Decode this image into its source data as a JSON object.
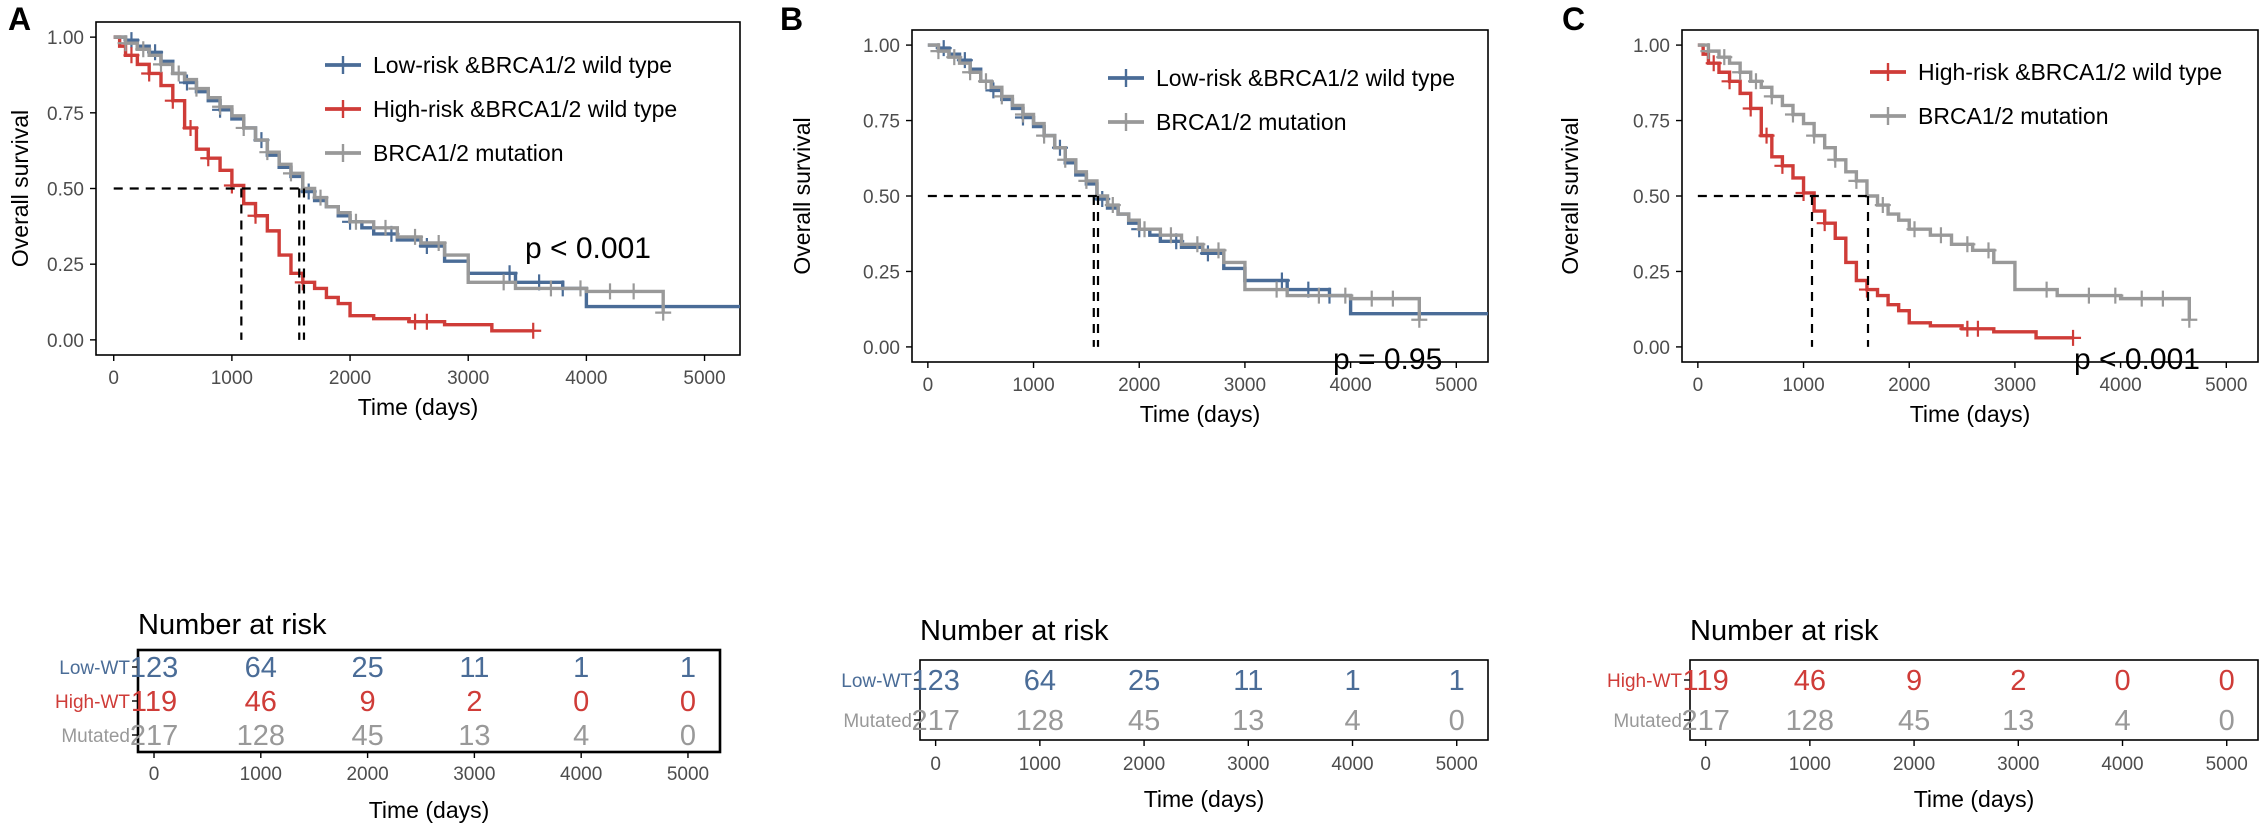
{
  "figure": {
    "colors": {
      "blue": "#4a6c97",
      "red": "#cf3c38",
      "gray": "#999999",
      "axis": "#000000",
      "tick": "#4d4d4d",
      "dash": "#000000"
    }
  },
  "chart_data": [
    {
      "type": "line",
      "panel_label": "A",
      "title": "",
      "xlabel": "Time (days)",
      "ylabel": "Overall survival",
      "xlim": [
        -150,
        5300
      ],
      "ylim": [
        -0.05,
        1.05
      ],
      "x_ticks": [
        "0",
        "1000",
        "2000",
        "3000",
        "4000",
        "5000"
      ],
      "y_ticks": [
        "0.00",
        "0.25",
        "0.50",
        "0.75",
        "1.00"
      ],
      "p_value": "p < 0.001",
      "legend_position": "top-right",
      "series": [
        {
          "name": "Low-risk &BRCA1/2 wild type",
          "color": "#4a6c97",
          "x": [
            0,
            100,
            200,
            300,
            400,
            500,
            600,
            700,
            800,
            900,
            1000,
            1100,
            1200,
            1300,
            1400,
            1500,
            1600,
            1700,
            1800,
            1900,
            2000,
            2100,
            2200,
            2400,
            2600,
            2800,
            3000,
            3400,
            3800,
            4000,
            5300
          ],
          "y": [
            1.0,
            0.99,
            0.97,
            0.95,
            0.92,
            0.88,
            0.85,
            0.82,
            0.79,
            0.76,
            0.73,
            0.7,
            0.66,
            0.61,
            0.57,
            0.54,
            0.49,
            0.46,
            0.44,
            0.41,
            0.39,
            0.37,
            0.35,
            0.33,
            0.31,
            0.26,
            0.22,
            0.19,
            0.17,
            0.11,
            0.11
          ],
          "censor_x": [
            150,
            350,
            620,
            900,
            1250,
            1650,
            2000,
            2350,
            2650,
            3350,
            3600,
            3800
          ]
        },
        {
          "name": "High-risk &BRCA1/2 wild type",
          "color": "#cf3c38",
          "x": [
            0,
            50,
            100,
            200,
            300,
            400,
            500,
            600,
            700,
            800,
            900,
            1000,
            1100,
            1200,
            1300,
            1400,
            1500,
            1600,
            1700,
            1800,
            1900,
            2000,
            2200,
            2500,
            2800,
            3200,
            3550
          ],
          "y": [
            1.0,
            0.97,
            0.94,
            0.91,
            0.88,
            0.84,
            0.79,
            0.7,
            0.63,
            0.6,
            0.56,
            0.51,
            0.45,
            0.41,
            0.36,
            0.28,
            0.22,
            0.19,
            0.17,
            0.14,
            0.12,
            0.08,
            0.07,
            0.06,
            0.05,
            0.03,
            0.03
          ],
          "censor_x": [
            150,
            300,
            500,
            650,
            800,
            1000,
            1200,
            1600,
            2550,
            2650,
            3550
          ]
        },
        {
          "name": "BRCA1/2 mutation",
          "color": "#999999",
          "x": [
            0,
            100,
            200,
            300,
            400,
            500,
            600,
            700,
            800,
            900,
            1000,
            1100,
            1200,
            1300,
            1400,
            1500,
            1600,
            1700,
            1800,
            1900,
            2000,
            2200,
            2400,
            2600,
            2800,
            3000,
            3400,
            4000,
            4500,
            4650,
            4650
          ],
          "y": [
            1.0,
            0.98,
            0.96,
            0.94,
            0.91,
            0.88,
            0.86,
            0.83,
            0.8,
            0.77,
            0.74,
            0.7,
            0.66,
            0.62,
            0.58,
            0.55,
            0.5,
            0.47,
            0.44,
            0.42,
            0.39,
            0.37,
            0.34,
            0.32,
            0.28,
            0.19,
            0.17,
            0.16,
            0.16,
            0.16,
            0.09
          ],
          "censor_x": [
            100,
            250,
            400,
            550,
            700,
            900,
            1100,
            1300,
            1500,
            1750,
            2050,
            2300,
            2550,
            2750,
            3300,
            3700,
            3950,
            4200,
            4400,
            4650
          ]
        }
      ],
      "median_x": [
        1080,
        1570,
        1610
      ],
      "risk_table": {
        "title": "Number at risk",
        "xlabel": "Time (days)",
        "boxed": true,
        "rows": [
          {
            "label": "Low-WT",
            "color": "#4a6c97",
            "values": [
              "123",
              "64",
              "25",
              "11",
              "1",
              "1"
            ]
          },
          {
            "label": "High-WT",
            "color": "#cf3c38",
            "values": [
              "119",
              "46",
              "9",
              "2",
              "0",
              "0"
            ]
          },
          {
            "label": "Mutated",
            "color": "#999999",
            "values": [
              "217",
              "128",
              "45",
              "13",
              "4",
              "0"
            ]
          }
        ]
      }
    },
    {
      "type": "line",
      "panel_label": "B",
      "title": "",
      "xlabel": "Time (days)",
      "ylabel": "Overall survival",
      "xlim": [
        -150,
        5300
      ],
      "ylim": [
        -0.05,
        1.05
      ],
      "x_ticks": [
        "0",
        "1000",
        "2000",
        "3000",
        "4000",
        "5000"
      ],
      "y_ticks": [
        "0.00",
        "0.25",
        "0.50",
        "0.75",
        "1.00"
      ],
      "p_value": "p = 0.95",
      "legend_position": "top-right",
      "series": [
        {
          "name": "Low-risk &BRCA1/2 wild type",
          "color": "#4a6c97",
          "x": [
            0,
            100,
            200,
            300,
            400,
            500,
            600,
            700,
            800,
            900,
            1000,
            1100,
            1200,
            1300,
            1400,
            1500,
            1600,
            1700,
            1800,
            1900,
            2000,
            2100,
            2200,
            2400,
            2600,
            2800,
            3000,
            3400,
            3800,
            4000,
            5300
          ],
          "y": [
            1.0,
            0.99,
            0.97,
            0.95,
            0.92,
            0.88,
            0.85,
            0.82,
            0.79,
            0.76,
            0.73,
            0.7,
            0.66,
            0.61,
            0.57,
            0.54,
            0.49,
            0.46,
            0.44,
            0.41,
            0.39,
            0.37,
            0.35,
            0.33,
            0.31,
            0.26,
            0.22,
            0.19,
            0.17,
            0.11,
            0.11
          ],
          "censor_x": [
            150,
            350,
            620,
            900,
            1250,
            1650,
            2000,
            2350,
            2650,
            3350,
            3600,
            3800
          ]
        },
        {
          "name": "BRCA1/2 mutation",
          "color": "#999999",
          "x": [
            0,
            100,
            200,
            300,
            400,
            500,
            600,
            700,
            800,
            900,
            1000,
            1100,
            1200,
            1300,
            1400,
            1500,
            1600,
            1700,
            1800,
            1900,
            2000,
            2200,
            2400,
            2600,
            2800,
            3000,
            3400,
            4000,
            4500,
            4650,
            4650
          ],
          "y": [
            1.0,
            0.98,
            0.96,
            0.94,
            0.91,
            0.88,
            0.86,
            0.83,
            0.8,
            0.77,
            0.74,
            0.7,
            0.66,
            0.62,
            0.58,
            0.55,
            0.5,
            0.47,
            0.44,
            0.42,
            0.39,
            0.37,
            0.34,
            0.32,
            0.28,
            0.19,
            0.17,
            0.16,
            0.16,
            0.16,
            0.09
          ],
          "censor_x": [
            100,
            250,
            400,
            550,
            700,
            900,
            1100,
            1300,
            1500,
            1750,
            2050,
            2300,
            2550,
            2750,
            3300,
            3700,
            3950,
            4200,
            4400,
            4650
          ]
        }
      ],
      "median_x": [
        1570,
        1610
      ],
      "risk_table": {
        "title": "Number at risk",
        "xlabel": "Time (days)",
        "boxed": true,
        "rows": [
          {
            "label": "Low-WT",
            "color": "#4a6c97",
            "values": [
              "123",
              "64",
              "25",
              "11",
              "1",
              "1"
            ]
          },
          {
            "label": "Mutated",
            "color": "#999999",
            "values": [
              "217",
              "128",
              "45",
              "13",
              "4",
              "0"
            ]
          }
        ]
      }
    },
    {
      "type": "line",
      "panel_label": "C",
      "title": "",
      "xlabel": "Time (days)",
      "ylabel": "Overall survival",
      "xlim": [
        -150,
        5300
      ],
      "ylim": [
        -0.05,
        1.05
      ],
      "x_ticks": [
        "0",
        "1000",
        "2000",
        "3000",
        "4000",
        "5000"
      ],
      "y_ticks": [
        "0.00",
        "0.25",
        "0.50",
        "0.75",
        "1.00"
      ],
      "p_value": "p < 0.001",
      "legend_position": "top-right",
      "series": [
        {
          "name": "High-risk &BRCA1/2 wild type",
          "color": "#cf3c38",
          "x": [
            0,
            50,
            100,
            200,
            300,
            400,
            500,
            600,
            700,
            800,
            900,
            1000,
            1100,
            1200,
            1300,
            1400,
            1500,
            1600,
            1700,
            1800,
            1900,
            2000,
            2200,
            2500,
            2800,
            3200,
            3550
          ],
          "y": [
            1.0,
            0.97,
            0.94,
            0.91,
            0.88,
            0.84,
            0.79,
            0.7,
            0.63,
            0.6,
            0.56,
            0.51,
            0.45,
            0.41,
            0.36,
            0.28,
            0.22,
            0.19,
            0.17,
            0.14,
            0.12,
            0.08,
            0.07,
            0.06,
            0.05,
            0.03,
            0.03
          ],
          "censor_x": [
            150,
            300,
            500,
            650,
            800,
            1000,
            1200,
            1600,
            2550,
            2650,
            3550
          ]
        },
        {
          "name": "BRCA1/2 mutation",
          "color": "#999999",
          "x": [
            0,
            100,
            200,
            300,
            400,
            500,
            600,
            700,
            800,
            900,
            1000,
            1100,
            1200,
            1300,
            1400,
            1500,
            1600,
            1700,
            1800,
            1900,
            2000,
            2200,
            2400,
            2600,
            2800,
            3000,
            3400,
            4000,
            4500,
            4650,
            4650
          ],
          "y": [
            1.0,
            0.98,
            0.96,
            0.94,
            0.91,
            0.88,
            0.86,
            0.83,
            0.8,
            0.77,
            0.74,
            0.7,
            0.66,
            0.62,
            0.58,
            0.55,
            0.5,
            0.47,
            0.44,
            0.42,
            0.39,
            0.37,
            0.34,
            0.32,
            0.28,
            0.19,
            0.17,
            0.16,
            0.16,
            0.16,
            0.09
          ],
          "censor_x": [
            100,
            250,
            400,
            550,
            700,
            900,
            1100,
            1300,
            1500,
            1750,
            2050,
            2300,
            2550,
            2750,
            3300,
            3700,
            3950,
            4200,
            4400,
            4650
          ]
        }
      ],
      "median_x": [
        1080,
        1610
      ],
      "risk_table": {
        "title": "Number at risk",
        "xlabel": "Time (days)",
        "boxed": true,
        "rows": [
          {
            "label": "High-WT",
            "color": "#cf3c38",
            "values": [
              "119",
              "46",
              "9",
              "2",
              "0",
              "0"
            ]
          },
          {
            "label": "Mutated",
            "color": "#999999",
            "values": [
              "217",
              "128",
              "45",
              "13",
              "4",
              "0"
            ]
          }
        ]
      }
    }
  ]
}
